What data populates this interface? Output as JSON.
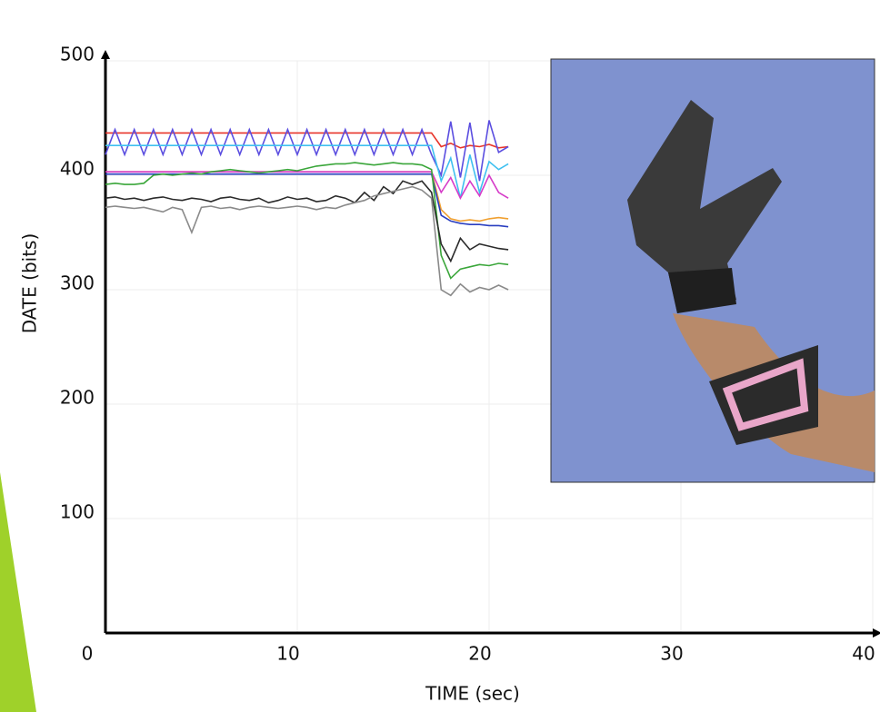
{
  "chart_data": {
    "type": "line",
    "x_label": "TIME (sec)",
    "y_label": "DATE (bits)",
    "x": [
      0,
      0.5,
      1,
      1.5,
      2,
      2.5,
      3,
      3.5,
      4,
      4.5,
      5,
      5.5,
      6,
      6.5,
      7,
      7.5,
      8,
      8.5,
      9,
      9.5,
      10,
      10.5,
      11,
      11.5,
      12,
      12.5,
      13,
      13.5,
      14,
      14.5,
      15,
      15.5,
      16,
      16.5,
      17,
      17.5,
      18,
      18.5,
      19,
      19.5,
      20,
      20.5,
      21
    ],
    "series": [
      {
        "color": "#e8342a",
        "values": [
          437,
          437,
          437,
          437,
          437,
          437,
          437,
          437,
          437,
          437,
          437,
          437,
          437,
          437,
          437,
          437,
          437,
          437,
          437,
          437,
          437,
          437,
          437,
          437,
          437,
          437,
          437,
          437,
          437,
          437,
          437,
          437,
          437,
          437,
          437,
          425,
          428,
          424,
          426,
          425,
          427,
          424,
          425
        ]
      },
      {
        "color": "#5b4ee0",
        "values": [
          418,
          440,
          418,
          440,
          418,
          440,
          418,
          440,
          418,
          440,
          418,
          440,
          418,
          440,
          418,
          440,
          418,
          440,
          418,
          440,
          418,
          440,
          418,
          440,
          418,
          440,
          418,
          440,
          418,
          440,
          418,
          440,
          418,
          440,
          418,
          400,
          447,
          398,
          446,
          395,
          448,
          420,
          425
        ]
      },
      {
        "color": "#3fc0f0",
        "values": [
          426,
          426,
          426,
          426,
          426,
          426,
          426,
          426,
          426,
          426,
          426,
          426,
          426,
          426,
          426,
          426,
          426,
          426,
          426,
          426,
          426,
          426,
          426,
          426,
          426,
          426,
          426,
          426,
          426,
          426,
          426,
          426,
          426,
          426,
          426,
          395,
          415,
          380,
          418,
          385,
          412,
          405,
          410
        ]
      },
      {
        "color": "#f0a030",
        "values": [
          403,
          403,
          403,
          403,
          403,
          403,
          403,
          403,
          403,
          403,
          403,
          403,
          403,
          403,
          403,
          403,
          403,
          403,
          403,
          403,
          403,
          403,
          403,
          403,
          403,
          403,
          403,
          403,
          403,
          403,
          403,
          403,
          403,
          403,
          403,
          370,
          362,
          360,
          361,
          360,
          362,
          363,
          362
        ]
      },
      {
        "color": "#d63bc8",
        "values": [
          403,
          403,
          403,
          403,
          403,
          403,
          403,
          403,
          403,
          403,
          403,
          403,
          403,
          403,
          403,
          403,
          403,
          403,
          403,
          403,
          403,
          403,
          403,
          403,
          403,
          403,
          403,
          403,
          403,
          403,
          403,
          403,
          403,
          403,
          403,
          385,
          398,
          380,
          395,
          382,
          400,
          385,
          380
        ]
      },
      {
        "color": "#2a3fc0",
        "values": [
          401,
          401,
          401,
          401,
          401,
          401,
          401,
          401,
          401,
          401,
          401,
          401,
          401,
          401,
          401,
          401,
          401,
          401,
          401,
          401,
          401,
          401,
          401,
          401,
          401,
          401,
          401,
          401,
          401,
          401,
          401,
          401,
          401,
          401,
          401,
          365,
          360,
          358,
          357,
          357,
          356,
          356,
          355
        ]
      },
      {
        "color": "#3aa63a",
        "values": [
          392,
          393,
          392,
          392,
          393,
          400,
          401,
          400,
          401,
          402,
          401,
          403,
          404,
          405,
          404,
          403,
          402,
          403,
          404,
          405,
          404,
          406,
          408,
          409,
          410,
          410,
          411,
          410,
          409,
          410,
          411,
          410,
          410,
          409,
          405,
          330,
          310,
          318,
          320,
          322,
          321,
          323,
          322
        ]
      },
      {
        "color": "#2b2b2b",
        "values": [
          380,
          381,
          379,
          380,
          378,
          380,
          381,
          379,
          378,
          380,
          379,
          377,
          380,
          381,
          379,
          378,
          380,
          376,
          378,
          381,
          379,
          380,
          377,
          378,
          382,
          380,
          376,
          385,
          378,
          390,
          384,
          395,
          392,
          395,
          385,
          340,
          325,
          345,
          335,
          340,
          338,
          336,
          335
        ]
      },
      {
        "color": "#8a8a8a",
        "values": [
          372,
          373,
          372,
          371,
          372,
          370,
          368,
          372,
          370,
          350,
          372,
          373,
          371,
          372,
          370,
          372,
          373,
          372,
          371,
          372,
          373,
          372,
          370,
          372,
          371,
          374,
          376,
          378,
          382,
          384,
          386,
          388,
          390,
          387,
          380,
          300,
          295,
          305,
          298,
          302,
          300,
          304,
          300
        ]
      }
    ],
    "xlim": [
      0,
      40
    ],
    "ylim": [
      0,
      500
    ],
    "xticks": [
      0,
      10,
      20,
      30,
      40
    ],
    "yticks": [
      100,
      200,
      300,
      400,
      500
    ],
    "grid": true
  }
}
